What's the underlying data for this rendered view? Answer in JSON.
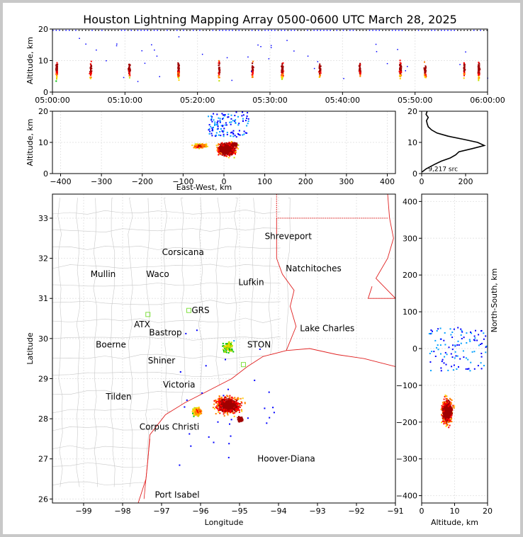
{
  "title": "Houston Lightning Mapping Array 0500-0600 UTC March 28, 2025",
  "chart_data": [
    {
      "panel": "altitude-time",
      "type": "scatter",
      "ylabel": "Altitude, km",
      "ylim": [
        0,
        20
      ],
      "yticks": [
        "0",
        "10",
        "20"
      ],
      "xticks": [
        "05:00:00",
        "05:10:00",
        "05:20:00",
        "05:30:00",
        "05:40:00",
        "05:50:00",
        "06:00:00"
      ],
      "xlim_minutes": [
        0,
        60
      ],
      "bursts_minutes": [
        0.5,
        5.2,
        10.5,
        17.3,
        22.9,
        27.5,
        31.6,
        36.8,
        42.3,
        47.9,
        51.3,
        56.7,
        58.7
      ],
      "grid": true
    },
    {
      "panel": "altitude-east-west",
      "type": "scatter",
      "xlabel": "East-West, km",
      "ylabel": "Altitude, km",
      "xlim": [
        -420,
        420
      ],
      "ylim": [
        0,
        20
      ],
      "xticks": [
        "−400",
        "−300",
        "−200",
        "−100",
        "0",
        "100",
        "200",
        "300",
        "400"
      ],
      "yticks": [
        "0",
        "10",
        "20"
      ],
      "grid": true
    },
    {
      "panel": "altitude-histogram",
      "type": "line",
      "xlim": [
        0,
        300
      ],
      "ylim": [
        0,
        20
      ],
      "xticks": [
        "0",
        "200"
      ],
      "yticks": [
        "0",
        "10",
        "20"
      ],
      "annotation": "9,217 src",
      "profile": [
        [
          2,
          0.5
        ],
        [
          20,
          1.5
        ],
        [
          60,
          3
        ],
        [
          90,
          4
        ],
        [
          130,
          5
        ],
        [
          155,
          6
        ],
        [
          170,
          7
        ],
        [
          230,
          8
        ],
        [
          285,
          9
        ],
        [
          255,
          10
        ],
        [
          190,
          11
        ],
        [
          120,
          12
        ],
        [
          70,
          13
        ],
        [
          45,
          14
        ],
        [
          30,
          15
        ],
        [
          25,
          16
        ],
        [
          22,
          17
        ],
        [
          30,
          18
        ],
        [
          20,
          19
        ],
        [
          25,
          20
        ]
      ]
    },
    {
      "panel": "plan-view",
      "type": "scatter",
      "xlabel": "Longitude",
      "ylabel": "Latitude",
      "xlim": [
        -99.8,
        -91
      ],
      "ylim": [
        25.9,
        33.6
      ],
      "xticks": [
        "−99",
        "−98",
        "−97",
        "−96",
        "−95",
        "−94",
        "−93",
        "−92",
        "−91"
      ],
      "yticks": [
        "26",
        "27",
        "28",
        "29",
        "30",
        "31",
        "32",
        "33"
      ],
      "grid": true,
      "cities": [
        {
          "name": "Shreveport",
          "lon": -93.75,
          "lat": 32.55,
          "color": "#000000"
        },
        {
          "name": "Corsicana",
          "lon": -96.45,
          "lat": 32.15,
          "color": "#000000"
        },
        {
          "name": "Mullin",
          "lon": -98.5,
          "lat": 31.6,
          "color": "#f08a4b"
        },
        {
          "name": "Waco",
          "lon": -97.1,
          "lat": 31.6,
          "color": "#000000"
        },
        {
          "name": "Natchitoches",
          "lon": -93.1,
          "lat": 31.75,
          "color": "#000000"
        },
        {
          "name": "Lufkin",
          "lon": -94.7,
          "lat": 31.4,
          "color": "#000000"
        },
        {
          "name": "GRS",
          "lon": -96.0,
          "lat": 30.7,
          "color": "#000000"
        },
        {
          "name": "ATX",
          "lon": -97.5,
          "lat": 30.35,
          "color": "#f08a4b"
        },
        {
          "name": "Bastrop",
          "lon": -96.9,
          "lat": 30.15,
          "color": "#000000"
        },
        {
          "name": "Lake Charles",
          "lon": -92.75,
          "lat": 30.25,
          "color": "#000000"
        },
        {
          "name": "Boerne",
          "lon": -98.3,
          "lat": 29.85,
          "color": "#000000"
        },
        {
          "name": "STON",
          "lon": -94.5,
          "lat": 29.85,
          "color": "#e0a000"
        },
        {
          "name": "Shiner",
          "lon": -97.0,
          "lat": 29.45,
          "color": "#000000"
        },
        {
          "name": "Victoria",
          "lon": -96.55,
          "lat": 28.85,
          "color": "#000000"
        },
        {
          "name": "Tilden",
          "lon": -98.1,
          "lat": 28.55,
          "color": "#000000"
        },
        {
          "name": "Corpus Christi",
          "lon": -96.8,
          "lat": 27.8,
          "color": "#000000"
        },
        {
          "name": "Hoover-Diana",
          "lon": -93.8,
          "lat": 27.0,
          "color": "#1f1fff"
        },
        {
          "name": "Port Isabel",
          "lon": -96.6,
          "lat": 26.1,
          "color": "#000000"
        }
      ]
    },
    {
      "panel": "north-south-altitude",
      "type": "scatter",
      "xlabel": "Altitude, km",
      "ylabel": "North-South, km",
      "xlim": [
        0,
        20
      ],
      "ylim": [
        -420,
        420
      ],
      "xticks": [
        "0",
        "10",
        "20"
      ],
      "yticks": [
        "−400",
        "−300",
        "−200",
        "−100",
        "0",
        "100",
        "200",
        "300",
        "400"
      ],
      "grid": true
    }
  ],
  "colors": {
    "scale": [
      "#0000ff",
      "#00a0ff",
      "#00d0a0",
      "#00c000",
      "#c0e000",
      "#ffd000",
      "#ff8000",
      "#ff0000",
      "#a00000"
    ],
    "state_border": "#e02020",
    "county_border": "#c8c8c8",
    "station_marker": "#80e040"
  }
}
